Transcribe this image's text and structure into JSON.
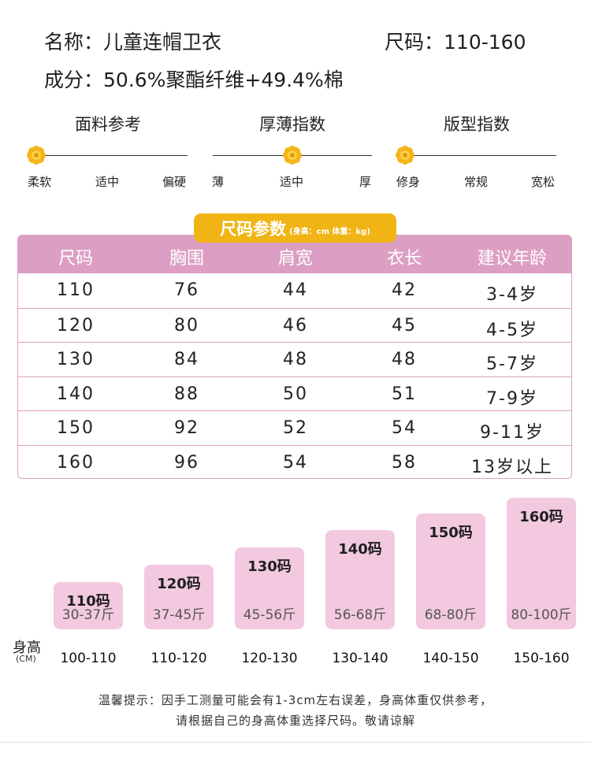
{
  "header": {
    "name_label": "名称：",
    "name_value": "儿童连帽卫衣",
    "size_label": "尺码：",
    "size_value": "110-160",
    "material_label": "成分：",
    "material_value": "50.6%聚酯纤维+49.4%棉"
  },
  "indicators": [
    {
      "title": "面料参考",
      "labels": [
        "柔软",
        "适中",
        "偏硬"
      ],
      "position": 0.05
    },
    {
      "title": "厚薄指数",
      "labels": [
        "薄",
        "适中",
        "厚"
      ],
      "position": 0.5
    },
    {
      "title": "版型指数",
      "labels": [
        "修身",
        "常规",
        "宽松"
      ],
      "position": 0.05
    }
  ],
  "indicator_color": "#f5b418",
  "size_table": {
    "title": "尺码参数",
    "subtitle": "(身高：cm 体重：kg)",
    "headers": [
      "尺码",
      "胸围",
      "肩宽",
      "衣长",
      "建议年龄"
    ],
    "rows": [
      [
        "110",
        "76",
        "44",
        "42",
        "3-4岁"
      ],
      [
        "120",
        "80",
        "46",
        "45",
        "4-5岁"
      ],
      [
        "130",
        "84",
        "48",
        "48",
        "5-7岁"
      ],
      [
        "140",
        "88",
        "50",
        "51",
        "7-9岁"
      ],
      [
        "150",
        "92",
        "52",
        "54",
        "9-11岁"
      ],
      [
        "160",
        "96",
        "54",
        "58",
        "13岁以上"
      ]
    ],
    "header_color": "#dc9fc3",
    "badge_color": "#f1b415"
  },
  "size_chart": {
    "axis_label": "身高",
    "axis_unit": "(CM)",
    "bar_color": "#f2c9de",
    "items": [
      {
        "size": "110码",
        "weight": "30-37斤",
        "height": "100-110"
      },
      {
        "size": "120码",
        "weight": "37-45斤",
        "height": "110-120"
      },
      {
        "size": "130码",
        "weight": "45-56斤",
        "height": "120-130"
      },
      {
        "size": "140码",
        "weight": "56-68斤",
        "height": "130-140"
      },
      {
        "size": "150码",
        "weight": "68-80斤",
        "height": "140-150"
      },
      {
        "size": "160码",
        "weight": "80-100斤",
        "height": "150-160"
      }
    ]
  },
  "notes": {
    "line1": "温馨提示：因手工测量可能会有1-3cm左右误差，身高体重仅供参考，",
    "line2": "请根据自己的身高体重选择尺码。敬请谅解"
  }
}
